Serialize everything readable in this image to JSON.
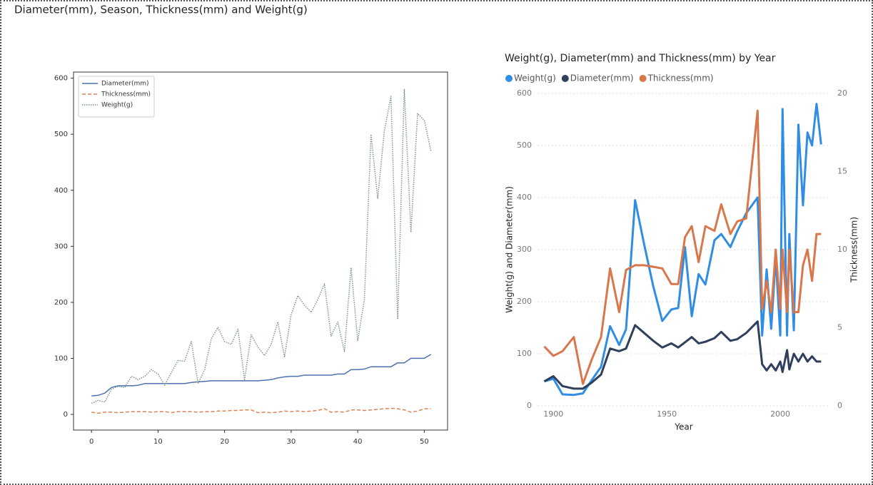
{
  "page_title": "Diameter(mm), Season, Thickness(mm) and Weight(g)",
  "chart_data": [
    {
      "type": "line",
      "x": [
        0,
        1,
        2,
        3,
        4,
        5,
        6,
        7,
        8,
        9,
        10,
        11,
        12,
        13,
        14,
        15,
        16,
        17,
        18,
        19,
        20,
        21,
        22,
        23,
        24,
        25,
        26,
        27,
        28,
        29,
        30,
        31,
        32,
        33,
        34,
        35,
        36,
        37,
        38,
        39,
        40,
        41,
        42,
        43,
        44,
        45,
        46,
        47,
        48,
        49,
        50,
        51
      ],
      "xlim": [
        -2.7,
        53.5
      ],
      "xticks": [
        0,
        10,
        20,
        30,
        40,
        50
      ],
      "ylim": [
        -28,
        611
      ],
      "yticks": [
        0,
        100,
        200,
        300,
        400,
        500,
        600
      ],
      "grid": false,
      "legend": "upper left",
      "series": [
        {
          "name": "Diameter(mm)",
          "color": "#4c72b0",
          "linestyle": "solid",
          "values": [
            33,
            34,
            38,
            48,
            51,
            51,
            51,
            52,
            55,
            55,
            55,
            55,
            55,
            55,
            55,
            57,
            58,
            59,
            60,
            60,
            60,
            60,
            60,
            60,
            60,
            60,
            61,
            62,
            65,
            67,
            68,
            68,
            70,
            70,
            70,
            70,
            70,
            72,
            72,
            80,
            80,
            81,
            85,
            85,
            85,
            85,
            92,
            92,
            100,
            100,
            100,
            107
          ]
        },
        {
          "name": "Thickness(mm)",
          "color": "#dd8452",
          "linestyle": "dashed",
          "values": [
            4,
            2,
            4,
            4,
            3,
            4,
            5,
            5,
            5,
            4,
            5,
            5,
            3,
            5,
            5,
            5,
            4,
            5,
            5,
            6,
            6,
            7,
            7,
            8,
            8,
            3,
            4,
            3,
            4,
            6,
            5,
            6,
            5,
            6,
            7,
            10,
            4,
            5,
            4,
            8,
            8,
            7,
            8,
            9,
            10,
            11,
            10,
            8,
            4,
            6,
            10,
            10
          ]
        },
        {
          "name": "Weight(g)",
          "color": "#7f9a84",
          "linestyle": "dotted",
          "values": [
            20,
            25,
            22,
            45,
            50,
            48,
            68,
            62,
            68,
            80,
            72,
            52,
            75,
            96,
            95,
            130,
            55,
            80,
            135,
            155,
            130,
            125,
            152,
            62,
            142,
            120,
            105,
            125,
            165,
            103,
            178,
            212,
            195,
            182,
            205,
            233,
            140,
            165,
            112,
            262,
            132,
            205,
            500,
            385,
            505,
            568,
            170,
            580,
            325,
            537,
            525,
            470
          ]
        }
      ]
    },
    {
      "type": "line",
      "title": "Weight(g), Diameter(mm) and Thickness(mm) by Year",
      "xlabel": "Year",
      "ylabel": "Weight(g) and Diameter(mm)",
      "y2label": "Thickness(mm)",
      "x": [
        1896,
        1900,
        1904,
        1909,
        1913,
        1917,
        1921,
        1925,
        1929,
        1932,
        1936,
        1940,
        1944,
        1948,
        1952,
        1955,
        1958,
        1961,
        1964,
        1967,
        1971,
        1974,
        1978,
        1981,
        1985,
        1990,
        1992,
        1994,
        1996,
        1998,
        2000,
        2001,
        2003,
        2004,
        2006,
        2008,
        2010,
        2012,
        2014,
        2016,
        2018
      ],
      "xlim": [
        1893,
        2022
      ],
      "xticks": [
        1900,
        1950,
        2000
      ],
      "ylim": [
        0,
        600
      ],
      "yticks": [
        0,
        100,
        200,
        300,
        400,
        500,
        600
      ],
      "y2lim": [
        0,
        20
      ],
      "y2ticks": [
        0,
        5,
        10,
        15,
        20
      ],
      "grid": true,
      "legend": "top",
      "series": [
        {
          "name": "Weight(g)",
          "color": "#2f8de4",
          "linestyle": "solid",
          "values": [
            47,
            52,
            22,
            21,
            24,
            50,
            75,
            153,
            117,
            147,
            395,
            310,
            230,
            163,
            185,
            188,
            305,
            172,
            253,
            233,
            318,
            330,
            305,
            335,
            370,
            400,
            135,
            262,
            148,
            285,
            135,
            570,
            135,
            330,
            145,
            540,
            385,
            525,
            500,
            580,
            502
          ]
        },
        {
          "name": "Diameter(mm)",
          "color": "#2f3f5c",
          "linestyle": "solid",
          "values": [
            47,
            57,
            38,
            33,
            33,
            45,
            60,
            110,
            105,
            110,
            155,
            140,
            125,
            112,
            120,
            112,
            122,
            132,
            120,
            123,
            130,
            142,
            125,
            128,
            140,
            162,
            80,
            68,
            80,
            68,
            85,
            65,
            107,
            70,
            100,
            85,
            100,
            85,
            95,
            85,
            85
          ]
        },
        {
          "name": "Thickness(mm)",
          "color": "#d9774b",
          "linestyle": "solid",
          "axis": "y2",
          "values": [
            3.8,
            3.2,
            3.5,
            4.4,
            1.4,
            3,
            4.4,
            8.8,
            6,
            8.7,
            9,
            9,
            8.9,
            8.8,
            7.8,
            7.8,
            10.8,
            11.5,
            9.2,
            11.5,
            11.2,
            12.9,
            11,
            11.8,
            12,
            18.9,
            6.2,
            8,
            6,
            10,
            6.2,
            10,
            6,
            10,
            6,
            6,
            9,
            10,
            8,
            11,
            11
          ]
        }
      ]
    }
  ]
}
